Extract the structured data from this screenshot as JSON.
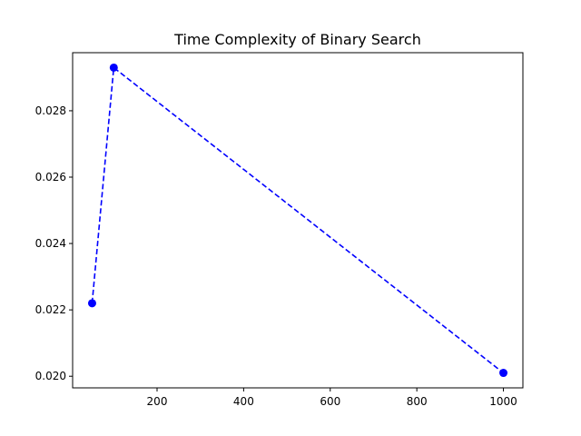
{
  "chart_data": {
    "type": "line",
    "title": "Time Complexity of Binary Search",
    "xlabel": "",
    "ylabel": "",
    "x": [
      50,
      100,
      1000
    ],
    "series": [
      {
        "values": [
          0.0222,
          0.0293,
          0.0201
        ],
        "color": "#0000ff",
        "line_style": "dashed",
        "marker": "circle"
      }
    ],
    "xlim": [
      5,
      1045
    ],
    "ylim": [
      0.01965,
      0.02975
    ],
    "x_ticks": [
      200,
      400,
      600,
      800,
      1000
    ],
    "x_tick_labels": [
      "200",
      "400",
      "600",
      "800",
      "1000"
    ],
    "y_ticks": [
      0.02,
      0.022,
      0.024,
      0.026,
      0.028
    ],
    "y_tick_labels": [
      "0.020",
      "0.022",
      "0.024",
      "0.026",
      "0.028"
    ],
    "grid": false,
    "legend": "none"
  }
}
